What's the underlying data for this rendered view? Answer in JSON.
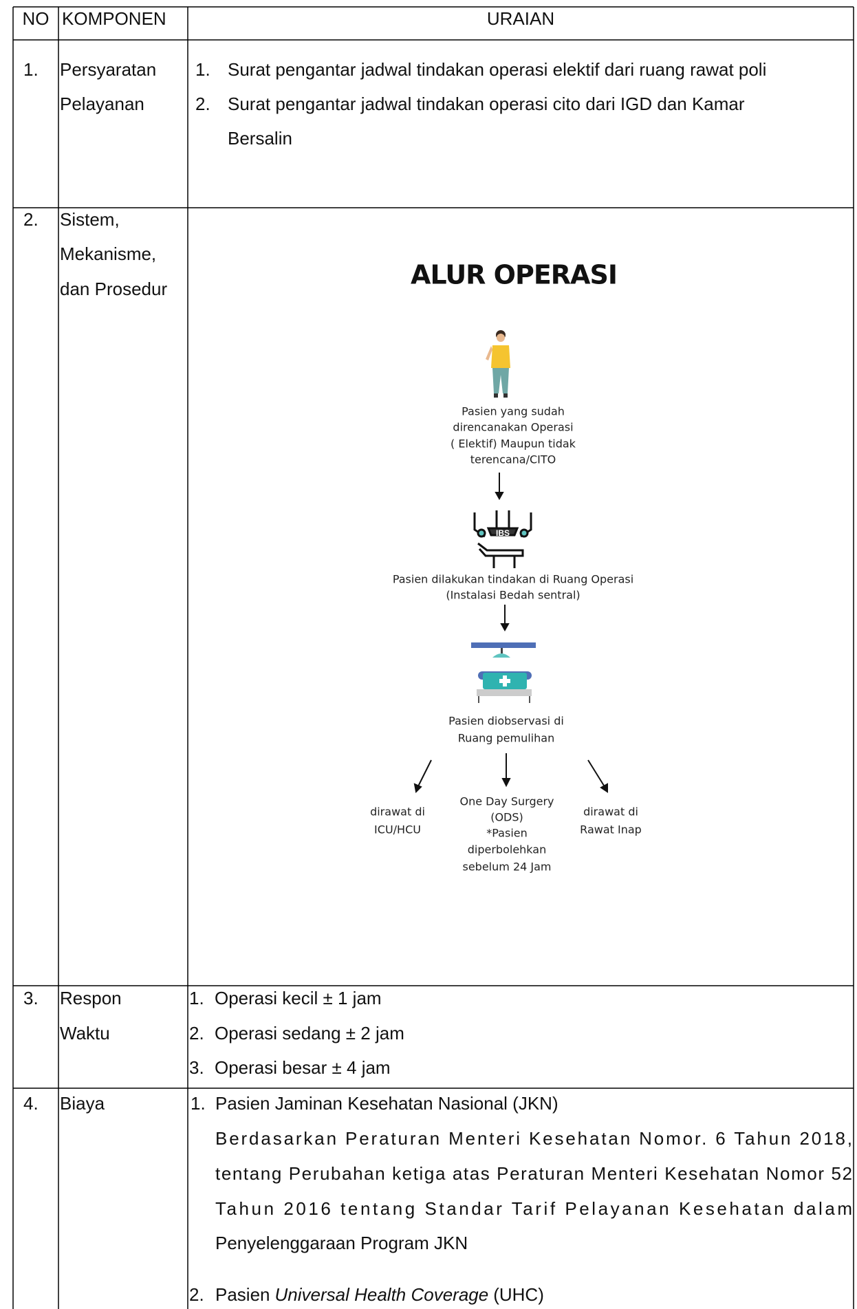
{
  "table": {
    "headers": [
      "NO",
      "KOMPONEN",
      "URAIAN"
    ],
    "rows": [
      {
        "no": "1.",
        "komponen": [
          "Persyaratan",
          "Pelayanan"
        ],
        "uraian": [
          {
            "no": "1.",
            "lines": [
              "Surat pengantar jadwal tindakan operasi elektif dari ruang rawat poli"
            ]
          },
          {
            "no": "2.",
            "lines": [
              "Surat pengantar jadwal tindakan operasi cito dari IGD dan Kamar",
              "Bersalin"
            ]
          }
        ]
      },
      {
        "no": "2.",
        "komponen": [
          "Sistem,",
          "Mekanisme,",
          "dan Prosedur"
        ],
        "diagram": {
          "title": "ALUR OPERASI",
          "steps": [
            [
              "Pasien yang sudah",
              "direncanakan Operasi",
              "( Elektif) Maupun tidak",
              "terencana/CITO"
            ],
            [
              "Pasien dilakukan tindakan di Ruang Operasi",
              "(Instalasi Bedah sentral)"
            ],
            [
              "Pasien diobservasi di",
              "Ruang pemulihan"
            ]
          ],
          "icon_label": "IBS",
          "outcomes": [
            [
              "dirawat di",
              "ICU/HCU"
            ],
            [
              "One Day Surgery",
              "(ODS)",
              "*Pasien",
              "diperbolehkan",
              "sebelum 24 Jam"
            ],
            [
              "dirawat di",
              "Rawat Inap"
            ]
          ]
        }
      },
      {
        "no": "3.",
        "komponen": [
          "Respon",
          "Waktu"
        ],
        "uraian": [
          {
            "no": "1.",
            "lines": [
              "Operasi kecil ± 1 jam"
            ]
          },
          {
            "no": "2.",
            "lines": [
              "Operasi sedang ± 2 jam"
            ]
          },
          {
            "no": "3.",
            "lines": [
              "Operasi besar ± 4 jam"
            ]
          }
        ]
      },
      {
        "no": "4.",
        "komponen": [
          "Biaya"
        ],
        "uraian": [
          {
            "no": "1.",
            "lines": [
              "Pasien Jaminan Kesehatan Nasional (JKN)",
              "Berdasarkan Peraturan Menteri Kesehatan Nomor. 6 Tahun 2018,",
              "tentang Perubahan ketiga atas Peraturan Menteri Kesehatan Nomor 52",
              "Tahun 2016 tentang Standar Tarif Pelayanan Kesehatan dalam",
              "Penyelenggaraan Program JKN"
            ]
          },
          {
            "no": "2.",
            "parts": [
              "Pasien",
              "Universal Health Coverage",
              "(UHC)"
            ]
          }
        ]
      }
    ]
  }
}
